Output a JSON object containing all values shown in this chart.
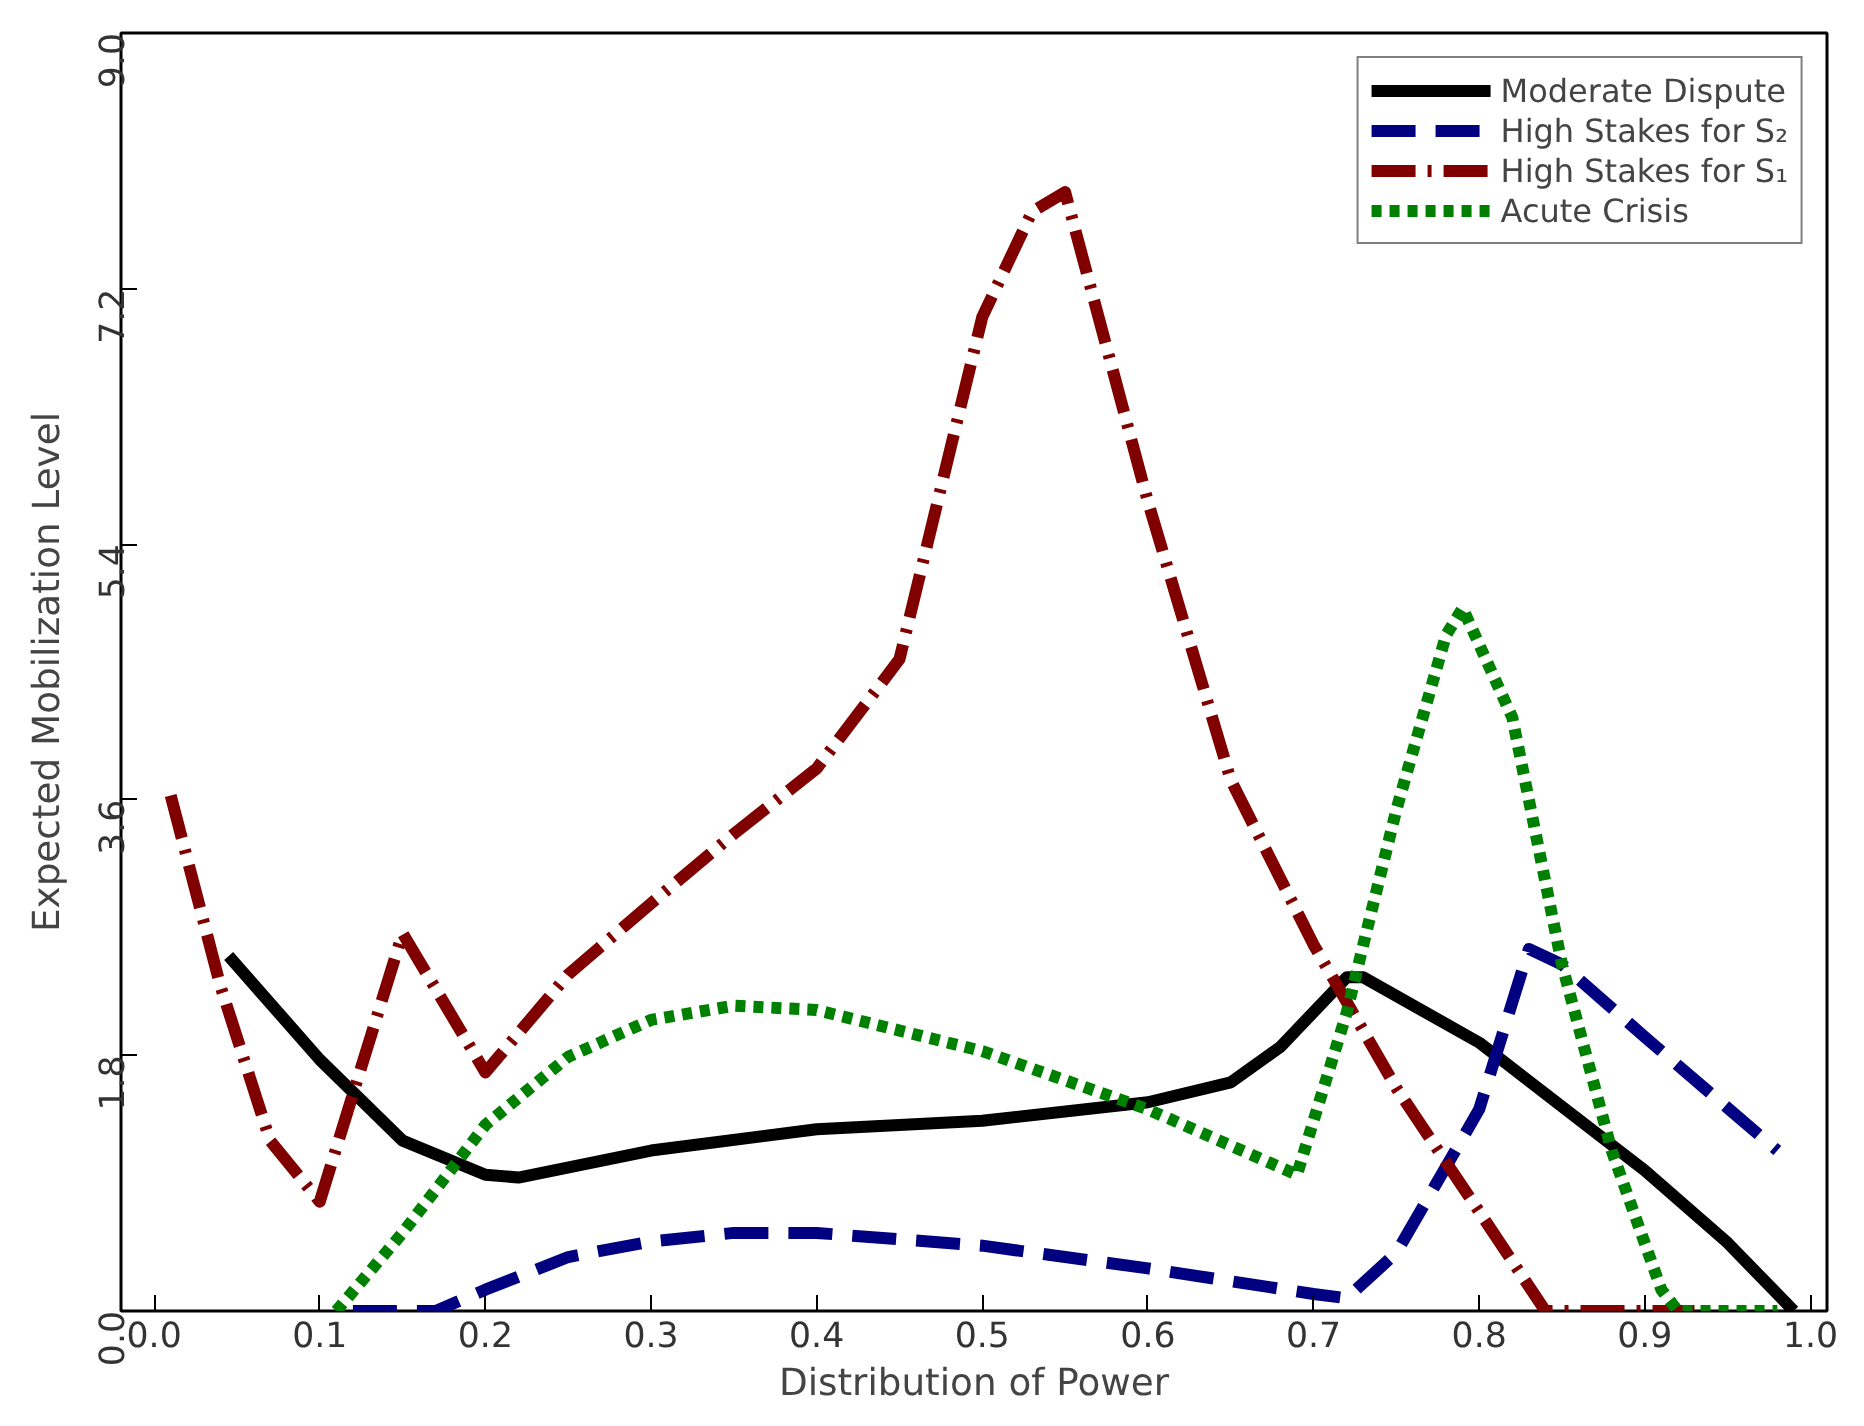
{
  "chart_data": {
    "type": "line",
    "xlabel": "Distribution of Power",
    "ylabel": "Expected Mobilization Level",
    "xlim": [
      -0.02,
      1.01
    ],
    "ylim": [
      0,
      9
    ],
    "xticks": [
      {
        "value": 0,
        "label": "0.0"
      },
      0.1,
      0.2,
      0.3,
      0.4,
      0.5,
      0.6,
      0.7,
      0.8,
      0.9,
      {
        "value": 1,
        "label": "1.0"
      }
    ],
    "yticks": [
      {
        "value": 0,
        "label": "0.0"
      },
      1.8,
      3.6,
      5.4,
      7.2,
      {
        "value": 9,
        "label": "9.0"
      }
    ],
    "grid": false,
    "legend": "top right",
    "tick_labels": "xy",
    "series": [
      {
        "name": "Moderate Dispute",
        "color": "#000000",
        "line_style": "solid",
        "x": [
          0.045,
          0.1,
          0.15,
          0.2,
          0.22,
          0.3,
          0.4,
          0.5,
          0.6,
          0.65,
          0.68,
          0.72,
          0.73,
          0.8,
          0.9,
          0.95,
          0.99
        ],
        "values": [
          2.5,
          1.77,
          1.2,
          0.96,
          0.94,
          1.13,
          1.28,
          1.34,
          1.47,
          1.61,
          1.86,
          2.35,
          2.35,
          1.89,
          0.99,
          0.48,
          0
        ]
      },
      {
        "name": "High Stakes for S₂",
        "color": "#000080",
        "line_style": "dashed",
        "x": [
          0.12,
          0.17,
          0.2,
          0.25,
          0.3,
          0.35,
          0.4,
          0.5,
          0.6,
          0.7,
          0.72,
          0.75,
          0.8,
          0.83,
          0.85,
          0.9,
          0.98
        ],
        "values": [
          0,
          0,
          0.15,
          0.38,
          0.49,
          0.55,
          0.55,
          0.46,
          0.3,
          0.12,
          0.09,
          0.41,
          1.42,
          2.55,
          2.44,
          1.93,
          1.13
        ]
      },
      {
        "name": "High Stakes for S₁",
        "color": "#800000",
        "line_style": "dashdot",
        "x": [
          0.01,
          0.04,
          0.07,
          0.1,
          0.15,
          0.2,
          0.25,
          0.3,
          0.35,
          0.4,
          0.45,
          0.5,
          0.53,
          0.55,
          0.6,
          0.65,
          0.7,
          0.75,
          0.8,
          0.84,
          0.87,
          0.93
        ],
        "values": [
          3.63,
          2.29,
          1.2,
          0.77,
          2.66,
          1.68,
          2.37,
          2.87,
          3.36,
          3.82,
          4.59,
          7.0,
          7.74,
          7.88,
          5.7,
          3.74,
          2.58,
          1.57,
          0.7,
          0,
          0,
          0
        ]
      },
      {
        "name": "Acute Crisis",
        "color": "#008000",
        "line_style": "dotted",
        "x": [
          0.11,
          0.15,
          0.2,
          0.25,
          0.3,
          0.35,
          0.4,
          0.5,
          0.6,
          0.69,
          0.72,
          0.75,
          0.78,
          0.79,
          0.82,
          0.85,
          0.88,
          0.91,
          0.92,
          0.98
        ],
        "values": [
          0,
          0.55,
          1.31,
          1.79,
          2.05,
          2.15,
          2.12,
          1.83,
          1.42,
          0.96,
          2.1,
          3.53,
          4.76,
          4.95,
          4.18,
          2.44,
          1.13,
          0.15,
          0,
          0
        ]
      }
    ]
  }
}
